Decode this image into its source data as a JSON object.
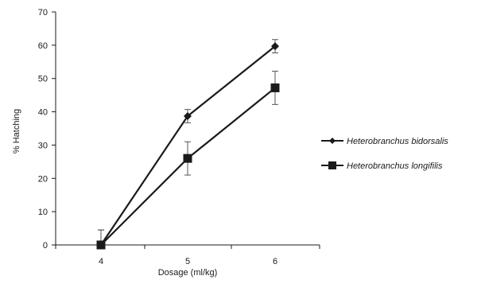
{
  "chart_data": {
    "type": "line",
    "title": "",
    "xlabel": "Dosage (ml/kg)",
    "ylabel": "% Hatching",
    "categories": [
      "4",
      "5",
      "6"
    ],
    "x": [
      4,
      5,
      6
    ],
    "ylim": [
      0,
      70
    ],
    "yticks": [
      0,
      10,
      20,
      30,
      40,
      50,
      60,
      70
    ],
    "grid": false,
    "legend_position": "right",
    "series": [
      {
        "name": "Heterobranchus bidorsalis",
        "marker": "diamond",
        "color": "#1a1a1a",
        "values": [
          0,
          38.7,
          59.7
        ],
        "error": [
          4.5,
          2.0,
          2.0
        ]
      },
      {
        "name": "Heterobranchus longifilis",
        "marker": "square",
        "color": "#1a1a1a",
        "values": [
          0,
          26.0,
          47.2
        ],
        "error": [
          4.5,
          5.0,
          5.0
        ]
      }
    ]
  }
}
